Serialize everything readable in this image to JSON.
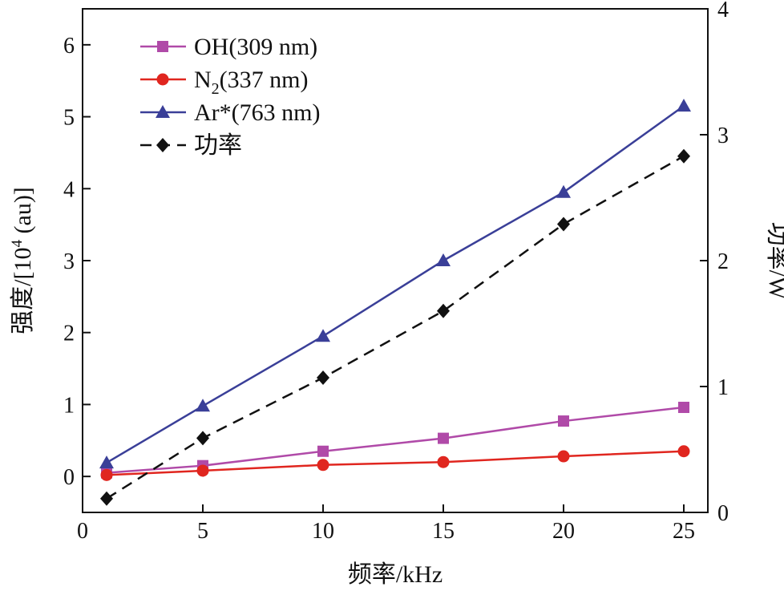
{
  "chart_data": {
    "type": "line",
    "title": "",
    "xlabel": "频率/kHz",
    "ylabel_left": "强度/[10",
    "ylabel_left_sup": "4",
    "ylabel_left_tail": " (au)]",
    "ylabel_right": "功率/W",
    "xlim": [
      0,
      26
    ],
    "ylim_left": [
      -0.5,
      6.5
    ],
    "ylim_right": [
      0,
      4
    ],
    "xticks": [
      0,
      5,
      10,
      15,
      20,
      25
    ],
    "yticks_left": [
      0,
      1,
      2,
      3,
      4,
      5,
      6
    ],
    "yticks_right": [
      0,
      1,
      2,
      3,
      4
    ],
    "grid": false,
    "legend_position": "top-left",
    "x": [
      1,
      5,
      10,
      15,
      20,
      25
    ],
    "series": [
      {
        "name": "OH(309 nm)",
        "name_main": "OH(309 nm)",
        "axis": "left",
        "color": "#b04aa8",
        "marker": "square",
        "dash": false,
        "values": [
          0.05,
          0.15,
          0.35,
          0.53,
          0.77,
          0.96
        ]
      },
      {
        "name": "N2(337 nm)",
        "name_main": "N",
        "name_sub": "2",
        "name_tail": "(337 nm)",
        "axis": "left",
        "color": "#e0261f",
        "marker": "circle",
        "dash": false,
        "values": [
          0.02,
          0.08,
          0.16,
          0.2,
          0.28,
          0.35
        ]
      },
      {
        "name": "Ar*(763 nm)",
        "name_main": "Ar*(763 nm)",
        "axis": "left",
        "color": "#3a3f98",
        "marker": "triangle",
        "dash": false,
        "values": [
          0.19,
          0.98,
          1.95,
          3.0,
          3.95,
          5.15
        ]
      },
      {
        "name": "功率",
        "name_main": "功率",
        "axis": "right",
        "color": "#111111",
        "marker": "diamond",
        "dash": true,
        "values": [
          0.11,
          0.59,
          1.07,
          1.6,
          2.29,
          2.83
        ]
      }
    ]
  }
}
